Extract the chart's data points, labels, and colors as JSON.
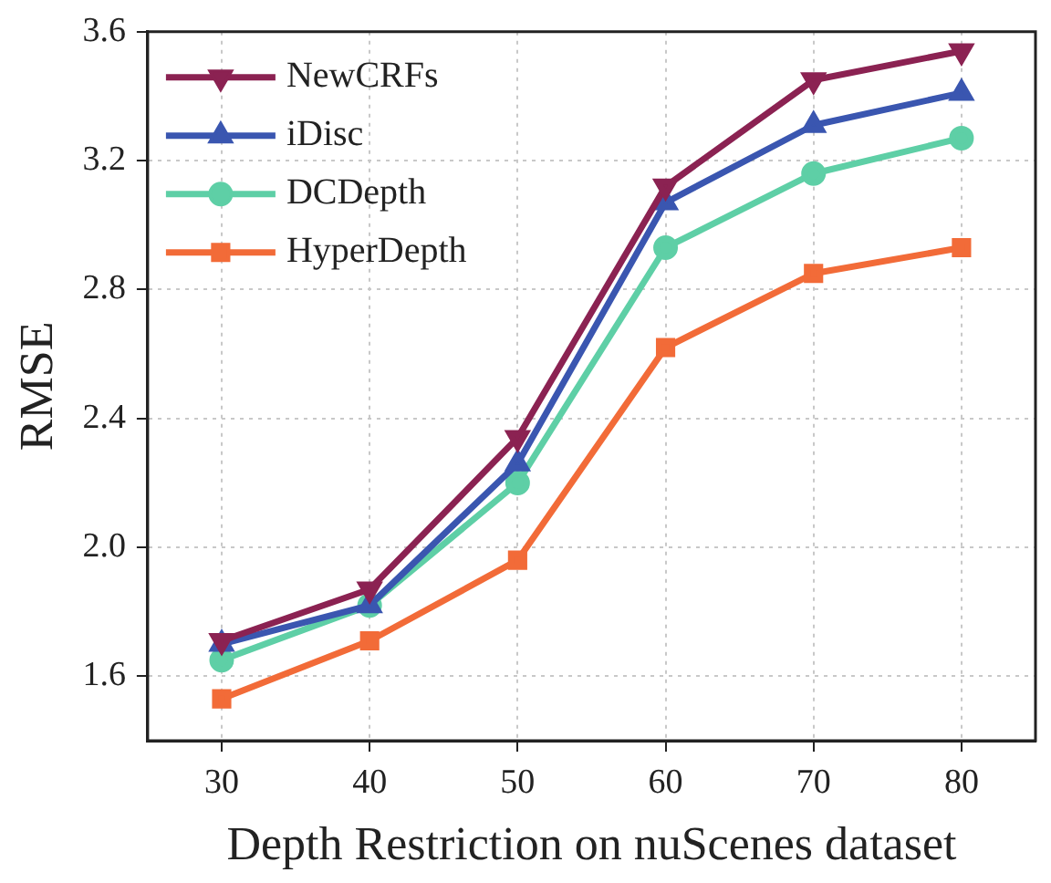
{
  "chart_data": {
    "type": "line",
    "xlabel": "Depth Restriction on nuScenes dataset",
    "ylabel": "RMSE",
    "x": [
      30,
      40,
      50,
      60,
      70,
      80
    ],
    "series": [
      {
        "name": "NewCRFs",
        "color": "#8b2252",
        "marker": "triangle_down",
        "values": [
          1.71,
          1.87,
          2.34,
          3.12,
          3.45,
          3.54
        ]
      },
      {
        "name": "iDisc",
        "color": "#3a56b0",
        "marker": "triangle",
        "values": [
          1.7,
          1.82,
          2.26,
          3.07,
          3.31,
          3.41
        ]
      },
      {
        "name": "DCDepth",
        "color": "#5ecfa6",
        "marker": "circle",
        "values": [
          1.65,
          1.82,
          2.2,
          2.93,
          3.16,
          3.27
        ]
      },
      {
        "name": "HyperDepth",
        "color": "#f26b38",
        "marker": "square",
        "values": [
          1.53,
          1.71,
          1.96,
          2.62,
          2.85,
          2.93
        ]
      }
    ],
    "xlim": [
      25,
      85
    ],
    "xticks": [
      30,
      40,
      50,
      60,
      70,
      80
    ],
    "ylim": [
      1.4,
      3.6
    ],
    "yticks": [
      {
        "value": 1.6,
        "label": "1.6"
      },
      {
        "value": 2.0,
        "label": "2.0"
      },
      {
        "value": 2.4,
        "label": "2.4"
      },
      {
        "value": 2.8,
        "label": "2.8"
      },
      {
        "value": 3.2,
        "label": "3.2"
      },
      {
        "value": 3.6,
        "label": "3.6"
      }
    ],
    "grid": true,
    "legend": "top left",
    "line_style": "solid"
  }
}
